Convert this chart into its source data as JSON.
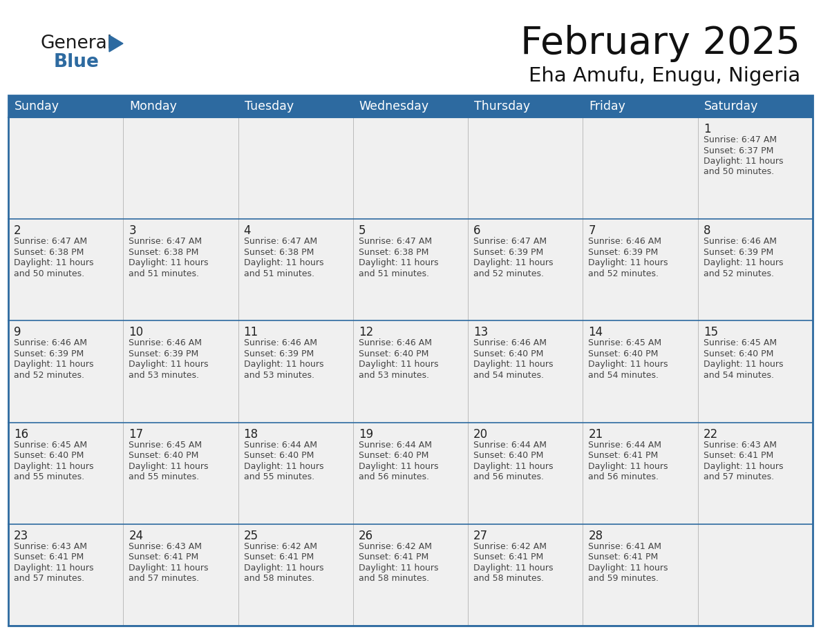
{
  "title": "February 2025",
  "subtitle": "Eha Amufu, Enugu, Nigeria",
  "header_bg": "#2D6AA0",
  "header_text": "#FFFFFF",
  "cell_bg": "#F0F0F0",
  "empty_bg": "#FFFFFF",
  "border_color": "#2D6AA0",
  "sep_color": "#2D6AA0",
  "text_color": "#333333",
  "day_num_color": "#222222",
  "day_headers": [
    "Sunday",
    "Monday",
    "Tuesday",
    "Wednesday",
    "Thursday",
    "Friday",
    "Saturday"
  ],
  "logo_general_color": "#1a1a1a",
  "logo_blue_color": "#2D6AA0",
  "calendar_data": [
    [
      null,
      null,
      null,
      null,
      null,
      null,
      {
        "day": 1,
        "sunrise": "6:47 AM",
        "sunset": "6:37 PM",
        "daylight": "11 hours",
        "daylight2": "and 50 minutes."
      }
    ],
    [
      {
        "day": 2,
        "sunrise": "6:47 AM",
        "sunset": "6:38 PM",
        "daylight": "11 hours",
        "daylight2": "and 50 minutes."
      },
      {
        "day": 3,
        "sunrise": "6:47 AM",
        "sunset": "6:38 PM",
        "daylight": "11 hours",
        "daylight2": "and 51 minutes."
      },
      {
        "day": 4,
        "sunrise": "6:47 AM",
        "sunset": "6:38 PM",
        "daylight": "11 hours",
        "daylight2": "and 51 minutes."
      },
      {
        "day": 5,
        "sunrise": "6:47 AM",
        "sunset": "6:38 PM",
        "daylight": "11 hours",
        "daylight2": "and 51 minutes."
      },
      {
        "day": 6,
        "sunrise": "6:47 AM",
        "sunset": "6:39 PM",
        "daylight": "11 hours",
        "daylight2": "and 52 minutes."
      },
      {
        "day": 7,
        "sunrise": "6:46 AM",
        "sunset": "6:39 PM",
        "daylight": "11 hours",
        "daylight2": "and 52 minutes."
      },
      {
        "day": 8,
        "sunrise": "6:46 AM",
        "sunset": "6:39 PM",
        "daylight": "11 hours",
        "daylight2": "and 52 minutes."
      }
    ],
    [
      {
        "day": 9,
        "sunrise": "6:46 AM",
        "sunset": "6:39 PM",
        "daylight": "11 hours",
        "daylight2": "and 52 minutes."
      },
      {
        "day": 10,
        "sunrise": "6:46 AM",
        "sunset": "6:39 PM",
        "daylight": "11 hours",
        "daylight2": "and 53 minutes."
      },
      {
        "day": 11,
        "sunrise": "6:46 AM",
        "sunset": "6:39 PM",
        "daylight": "11 hours",
        "daylight2": "and 53 minutes."
      },
      {
        "day": 12,
        "sunrise": "6:46 AM",
        "sunset": "6:40 PM",
        "daylight": "11 hours",
        "daylight2": "and 53 minutes."
      },
      {
        "day": 13,
        "sunrise": "6:46 AM",
        "sunset": "6:40 PM",
        "daylight": "11 hours",
        "daylight2": "and 54 minutes."
      },
      {
        "day": 14,
        "sunrise": "6:45 AM",
        "sunset": "6:40 PM",
        "daylight": "11 hours",
        "daylight2": "and 54 minutes."
      },
      {
        "day": 15,
        "sunrise": "6:45 AM",
        "sunset": "6:40 PM",
        "daylight": "11 hours",
        "daylight2": "and 54 minutes."
      }
    ],
    [
      {
        "day": 16,
        "sunrise": "6:45 AM",
        "sunset": "6:40 PM",
        "daylight": "11 hours",
        "daylight2": "and 55 minutes."
      },
      {
        "day": 17,
        "sunrise": "6:45 AM",
        "sunset": "6:40 PM",
        "daylight": "11 hours",
        "daylight2": "and 55 minutes."
      },
      {
        "day": 18,
        "sunrise": "6:44 AM",
        "sunset": "6:40 PM",
        "daylight": "11 hours",
        "daylight2": "and 55 minutes."
      },
      {
        "day": 19,
        "sunrise": "6:44 AM",
        "sunset": "6:40 PM",
        "daylight": "11 hours",
        "daylight2": "and 56 minutes."
      },
      {
        "day": 20,
        "sunrise": "6:44 AM",
        "sunset": "6:40 PM",
        "daylight": "11 hours",
        "daylight2": "and 56 minutes."
      },
      {
        "day": 21,
        "sunrise": "6:44 AM",
        "sunset": "6:41 PM",
        "daylight": "11 hours",
        "daylight2": "and 56 minutes."
      },
      {
        "day": 22,
        "sunrise": "6:43 AM",
        "sunset": "6:41 PM",
        "daylight": "11 hours",
        "daylight2": "and 57 minutes."
      }
    ],
    [
      {
        "day": 23,
        "sunrise": "6:43 AM",
        "sunset": "6:41 PM",
        "daylight": "11 hours",
        "daylight2": "and 57 minutes."
      },
      {
        "day": 24,
        "sunrise": "6:43 AM",
        "sunset": "6:41 PM",
        "daylight": "11 hours",
        "daylight2": "and 57 minutes."
      },
      {
        "day": 25,
        "sunrise": "6:42 AM",
        "sunset": "6:41 PM",
        "daylight": "11 hours",
        "daylight2": "and 58 minutes."
      },
      {
        "day": 26,
        "sunrise": "6:42 AM",
        "sunset": "6:41 PM",
        "daylight": "11 hours",
        "daylight2": "and 58 minutes."
      },
      {
        "day": 27,
        "sunrise": "6:42 AM",
        "sunset": "6:41 PM",
        "daylight": "11 hours",
        "daylight2": "and 58 minutes."
      },
      {
        "day": 28,
        "sunrise": "6:41 AM",
        "sunset": "6:41 PM",
        "daylight": "11 hours",
        "daylight2": "and 59 minutes."
      },
      null
    ]
  ]
}
